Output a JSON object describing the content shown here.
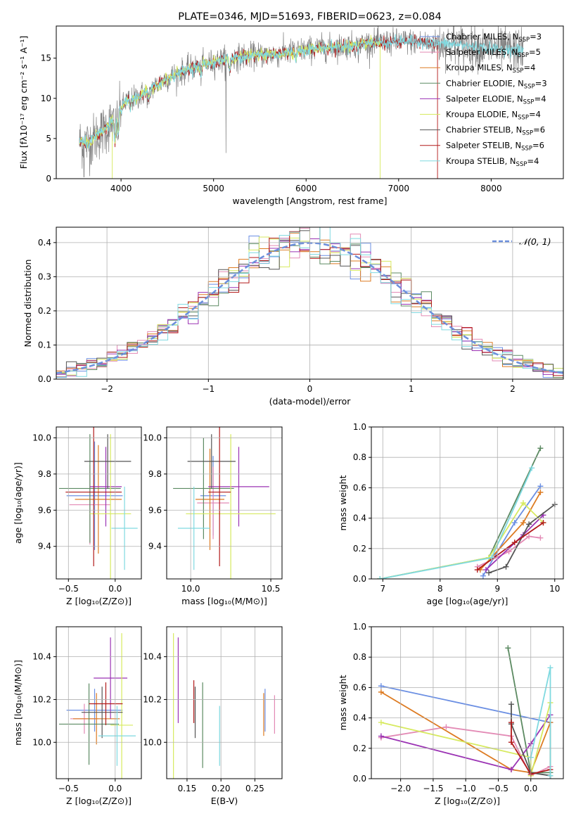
{
  "colors": {
    "chabrier_miles": "#6b8fe3",
    "salpeter_miles": "#e38ab5",
    "kroupa_miles": "#dd7b22",
    "chabrier_elodie": "#5c8a62",
    "salpeter_elodie": "#9b33b4",
    "kroupa_elodie": "#d7ea5f",
    "chabrier_stelib": "#555555",
    "salpeter_stelib": "#b21a1a",
    "kroupa_stelib": "#7fd9e0",
    "data": "#808080",
    "normal": "#6c8fdc",
    "grid": "#b0b0b0"
  },
  "chart_data": [
    {
      "id": "spectrum",
      "type": "line",
      "title": "PLATE=0346, MJD=51693, FIBERID=0623, z=0.084",
      "xlabel": "wavelength [Angstrom, rest frame]",
      "ylabel": "Flux [fλ10⁻¹⁷ erg cm⁻² s⁻¹ A⁻¹]",
      "xlim": [
        3300,
        8780
      ],
      "ylim": [
        0,
        19
      ],
      "xticks": [
        4000,
        5000,
        6000,
        7000,
        8000
      ],
      "yticks": [
        0,
        5,
        10,
        15
      ],
      "grid": false,
      "legend_position": "top-right",
      "legend": [
        {
          "label": "Chabrier MILES, N",
          "sub": "SSP",
          "suffix": "=3",
          "color_key": "chabrier_miles"
        },
        {
          "label": "Salpeter MILES, N",
          "sub": "SSP",
          "suffix": "=5",
          "color_key": "salpeter_miles"
        },
        {
          "label": "Kroupa MILES, N",
          "sub": "SSP",
          "suffix": "=4",
          "color_key": "kroupa_miles"
        },
        {
          "label": "Chabrier ELODIE, N",
          "sub": "SSP",
          "suffix": "=3",
          "color_key": "chabrier_elodie"
        },
        {
          "label": "Salpeter ELODIE, N",
          "sub": "SSP",
          "suffix": "=4",
          "color_key": "salpeter_elodie"
        },
        {
          "label": "Kroupa ELODIE, N",
          "sub": "SSP",
          "suffix": "=4",
          "color_key": "kroupa_elodie"
        },
        {
          "label": "Chabrier STELIB, N",
          "sub": "SSP",
          "suffix": "=6",
          "color_key": "chabrier_stelib"
        },
        {
          "label": "Salpeter STELIB, N",
          "sub": "SSP",
          "suffix": "=6",
          "color_key": "salpeter_stelib"
        },
        {
          "label": "Kroupa STELIB, N",
          "sub": "SSP",
          "suffix": "=4",
          "color_key": "kroupa_stelib"
        }
      ],
      "data_x_range": [
        3550,
        8350
      ],
      "models": [
        {
          "color_key": "salpeter_stelib",
          "x_range": [
            3550,
            7420
          ],
          "drop_at": 7420
        },
        {
          "color_key": "kroupa_elodie",
          "x_range": [
            3550,
            6800
          ],
          "drop_at": 6800
        },
        {
          "color_key": "kroupa_stelib",
          "x_range": [
            3550,
            8350
          ],
          "drop_at": null
        }
      ],
      "continuum": [
        [
          3550,
          4.6
        ],
        [
          3650,
          4.4
        ],
        [
          3750,
          5.4
        ],
        [
          3850,
          6.4
        ],
        [
          3950,
          7.6
        ],
        [
          4050,
          9.6
        ],
        [
          4150,
          10.0
        ],
        [
          4300,
          11.0
        ],
        [
          4500,
          12.5
        ],
        [
          4700,
          13.5
        ],
        [
          4900,
          14.2
        ],
        [
          5100,
          14.8
        ],
        [
          5300,
          15.2
        ],
        [
          5500,
          15.4
        ],
        [
          5700,
          15.5
        ],
        [
          5900,
          15.9
        ],
        [
          6100,
          16.2
        ],
        [
          6300,
          16.4
        ],
        [
          6500,
          16.6
        ],
        [
          6700,
          16.9
        ],
        [
          6900,
          17.0
        ],
        [
          7100,
          17.1
        ],
        [
          7300,
          16.9
        ],
        [
          7500,
          16.8
        ],
        [
          7700,
          16.6
        ],
        [
          7900,
          16.3
        ],
        [
          8100,
          16.1
        ],
        [
          8350,
          16.0
        ]
      ]
    },
    {
      "id": "residuals",
      "type": "histogram",
      "xlabel": "(data-model)/error",
      "ylabel": "Normed distribution",
      "xlim": [
        -2.5,
        2.5
      ],
      "ylim": [
        0,
        0.445
      ],
      "xticks": [
        -2,
        -1,
        0,
        1,
        2
      ],
      "yticks": [
        0.0,
        0.1,
        0.2,
        0.3,
        0.4
      ],
      "grid": true,
      "legend_position": "top-right",
      "legend": [
        {
          "label": "𝒩(0, 1)",
          "style": "dashed",
          "color_key": "normal"
        }
      ],
      "bin_width": 0.1,
      "note": "nine step histograms, one per model, approximately normal"
    },
    {
      "id": "age_vs_Z",
      "type": "errorbar",
      "xlabel": "Z [log₁₀(Z/Z⊙)]",
      "ylabel": "age  [log₁₀(age/yr)]",
      "xlim": [
        -0.63,
        0.28
      ],
      "ylim": [
        9.22,
        10.06
      ],
      "xticks": [
        -0.5,
        0.0
      ],
      "yticks": [
        9.4,
        9.6,
        9.8,
        10.0
      ],
      "grid": true,
      "points": [
        {
          "x": -0.22,
          "y": 9.68,
          "xerr": 0.3,
          "yerr": 0.3,
          "color_key": "chabrier_miles"
        },
        {
          "x": -0.27,
          "y": 9.63,
          "xerr": 0.22,
          "yerr": 0.22,
          "color_key": "salpeter_miles"
        },
        {
          "x": -0.18,
          "y": 9.66,
          "xerr": 0.25,
          "yerr": 0.3,
          "color_key": "kroupa_miles"
        },
        {
          "x": -0.27,
          "y": 9.72,
          "xerr": 0.33,
          "yerr": 0.3,
          "color_key": "chabrier_elodie"
        },
        {
          "x": -0.1,
          "y": 9.73,
          "xerr": 0.17,
          "yerr": 0.22,
          "color_key": "salpeter_elodie"
        },
        {
          "x": -0.05,
          "y": 9.58,
          "xerr": 0.22,
          "yerr": 0.44,
          "color_key": "kroupa_elodie"
        },
        {
          "x": -0.08,
          "y": 9.87,
          "xerr": 0.25,
          "yerr": 0.15,
          "color_key": "chabrier_stelib"
        },
        {
          "x": -0.23,
          "y": 9.7,
          "xerr": 0.3,
          "yerr": 0.41,
          "color_key": "salpeter_stelib"
        },
        {
          "x": 0.1,
          "y": 9.5,
          "xerr": 0.14,
          "yerr": 0.23,
          "color_key": "kroupa_stelib"
        }
      ]
    },
    {
      "id": "age_vs_mass",
      "type": "errorbar",
      "xlabel": "mass [log₁₀(M/M⊙)]",
      "ylabel": "",
      "xlim": [
        9.85,
        10.57
      ],
      "ylim": [
        9.22,
        10.06
      ],
      "xticks": [
        10.0,
        10.5
      ],
      "yticks": [
        9.4,
        9.6,
        9.8,
        10.0
      ],
      "grid": true,
      "points": [
        {
          "x": 10.14,
          "y": 9.68,
          "xerr": 0.08,
          "yerr": 0.22,
          "color_key": "chabrier_miles"
        },
        {
          "x": 10.14,
          "y": 9.64,
          "xerr": 0.1,
          "yerr": 0.2,
          "color_key": "salpeter_miles"
        },
        {
          "x": 10.12,
          "y": 9.66,
          "xerr": 0.09,
          "yerr": 0.28,
          "color_key": "kroupa_miles"
        },
        {
          "x": 10.08,
          "y": 9.72,
          "xerr": 0.19,
          "yerr": 0.28,
          "color_key": "chabrier_elodie"
        },
        {
          "x": 10.3,
          "y": 9.73,
          "xerr": 0.19,
          "yerr": 0.22,
          "color_key": "salpeter_elodie"
        },
        {
          "x": 10.25,
          "y": 9.58,
          "xerr": 0.28,
          "yerr": 0.44,
          "color_key": "kroupa_elodie"
        },
        {
          "x": 10.13,
          "y": 9.87,
          "xerr": 0.15,
          "yerr": 0.15,
          "color_key": "chabrier_stelib"
        },
        {
          "x": 10.18,
          "y": 9.7,
          "xerr": 0.07,
          "yerr": 0.41,
          "color_key": "salpeter_stelib"
        },
        {
          "x": 10.02,
          "y": 9.5,
          "xerr": 0.1,
          "yerr": 0.23,
          "color_key": "kroupa_stelib"
        }
      ]
    },
    {
      "id": "mass_weight_vs_age",
      "type": "line",
      "xlabel": "age  [log₁₀(age/yr)]",
      "ylabel": "mass weight",
      "xlim": [
        6.8,
        10.15
      ],
      "ylim": [
        0,
        1.0
      ],
      "xticks": [
        7,
        8,
        9,
        10
      ],
      "yticks": [
        0.0,
        0.2,
        0.4,
        0.6,
        0.8,
        1.0
      ],
      "grid": true,
      "series": [
        {
          "color_key": "chabrier_miles",
          "x": [
            8.75,
            9.3,
            9.75
          ],
          "y": [
            0.02,
            0.37,
            0.61
          ]
        },
        {
          "color_key": "salpeter_miles",
          "x": [
            8.65,
            9.2,
            9.55,
            9.75
          ],
          "y": [
            0.08,
            0.18,
            0.28,
            0.27
          ]
        },
        {
          "color_key": "kroupa_miles",
          "x": [
            8.7,
            9.45,
            9.75
          ],
          "y": [
            0.06,
            0.37,
            0.57
          ]
        },
        {
          "color_key": "chabrier_elodie",
          "x": [
            6.95,
            8.85,
            9.75
          ],
          "y": [
            0.0,
            0.14,
            0.86
          ]
        },
        {
          "color_key": "salpeter_elodie",
          "x": [
            8.8,
            9.45,
            9.8
          ],
          "y": [
            0.06,
            0.29,
            0.42
          ]
        },
        {
          "color_key": "kroupa_elodie",
          "x": [
            6.95,
            8.85,
            9.45,
            9.8
          ],
          "y": [
            0.0,
            0.14,
            0.5,
            0.37
          ]
        },
        {
          "color_key": "chabrier_stelib",
          "x": [
            8.85,
            9.15,
            9.55,
            10.0
          ],
          "y": [
            0.04,
            0.08,
            0.36,
            0.49
          ]
        },
        {
          "color_key": "salpeter_stelib",
          "x": [
            8.65,
            9.3,
            9.8
          ],
          "y": [
            0.06,
            0.24,
            0.37
          ]
        },
        {
          "color_key": "kroupa_stelib",
          "x": [
            6.95,
            8.9,
            9.6
          ],
          "y": [
            0.0,
            0.14,
            0.73
          ]
        }
      ]
    },
    {
      "id": "mass_vs_Z",
      "type": "errorbar",
      "xlabel": "Z [log₁₀(Z/Z⊙)]",
      "ylabel": "mass [log₁₀(M/M⊙)]",
      "xlim": [
        -0.63,
        0.28
      ],
      "ylim": [
        9.83,
        10.54
      ],
      "xticks": [
        -0.5,
        0.0
      ],
      "yticks": [
        10.0,
        10.2,
        10.4
      ],
      "grid": true,
      "points": [
        {
          "x": -0.22,
          "y": 10.15,
          "xerr": 0.3,
          "yerr": 0.1,
          "color_key": "chabrier_miles"
        },
        {
          "x": -0.33,
          "y": 10.11,
          "xerr": 0.15,
          "yerr": 0.07,
          "color_key": "salpeter_miles"
        },
        {
          "x": -0.2,
          "y": 10.11,
          "xerr": 0.25,
          "yerr": 0.12,
          "color_key": "kroupa_miles"
        },
        {
          "x": -0.28,
          "y": 10.085,
          "xerr": 0.32,
          "yerr": 0.19,
          "color_key": "chabrier_elodie"
        },
        {
          "x": -0.05,
          "y": 10.3,
          "xerr": 0.18,
          "yerr": 0.19,
          "color_key": "salpeter_elodie"
        },
        {
          "x": 0.07,
          "y": 10.08,
          "xerr": 0.12,
          "yerr": 0.43,
          "color_key": "kroupa_elodie"
        },
        {
          "x": -0.14,
          "y": 10.14,
          "xerr": 0.22,
          "yerr": 0.12,
          "color_key": "chabrier_stelib"
        },
        {
          "x": -0.1,
          "y": 10.18,
          "xerr": 0.18,
          "yerr": 0.1,
          "color_key": "salpeter_stelib"
        },
        {
          "x": 0.02,
          "y": 10.03,
          "xerr": 0.2,
          "yerr": 0.14,
          "color_key": "kroupa_stelib"
        }
      ]
    },
    {
      "id": "mass_vs_ebv",
      "type": "errorbar",
      "xlabel": "E(B-V)",
      "ylabel": "",
      "xlim": [
        0.12,
        0.29
      ],
      "ylim": [
        9.83,
        10.54
      ],
      "xticks": [
        0.15,
        0.2,
        0.25
      ],
      "yticks": [
        10.0,
        10.2,
        10.4
      ],
      "grid": true,
      "points": [
        {
          "x": 0.265,
          "y": 10.15,
          "xerr": 0,
          "yerr": 0.1,
          "color_key": "chabrier_miles"
        },
        {
          "x": 0.279,
          "y": 10.13,
          "xerr": 0,
          "yerr": 0.09,
          "color_key": "salpeter_miles"
        },
        {
          "x": 0.263,
          "y": 10.13,
          "xerr": 0,
          "yerr": 0.1,
          "color_key": "kroupa_miles"
        },
        {
          "x": 0.173,
          "y": 10.08,
          "xerr": 0,
          "yerr": 0.2,
          "color_key": "chabrier_elodie"
        },
        {
          "x": 0.137,
          "y": 10.29,
          "xerr": 0,
          "yerr": 0.2,
          "color_key": "salpeter_elodie"
        },
        {
          "x": 0.13,
          "y": 10.08,
          "xerr": 0,
          "yerr": 0.43,
          "color_key": "kroupa_elodie"
        },
        {
          "x": 0.162,
          "y": 10.14,
          "xerr": 0,
          "yerr": 0.12,
          "color_key": "chabrier_stelib"
        },
        {
          "x": 0.16,
          "y": 10.19,
          "xerr": 0,
          "yerr": 0.1,
          "color_key": "salpeter_stelib"
        },
        {
          "x": 0.198,
          "y": 10.03,
          "xerr": 0,
          "yerr": 0.14,
          "color_key": "kroupa_stelib"
        }
      ]
    },
    {
      "id": "mass_weight_vs_Z",
      "type": "line",
      "xlabel": "Z [log₁₀(Z/Z⊙)]",
      "ylabel": "mass weight",
      "xlim": [
        -2.45,
        0.5
      ],
      "ylim": [
        0,
        1.0
      ],
      "xticks": [
        -2.0,
        -1.5,
        -1.0,
        -0.5,
        0.0
      ],
      "yticks": [
        0.0,
        0.2,
        0.4,
        0.6,
        0.8,
        1.0
      ],
      "grid": true,
      "series": [
        {
          "color_key": "chabrier_miles",
          "x": [
            -2.3,
            0.3,
            0.3
          ],
          "y": [
            0.61,
            0.37,
            0.02
          ]
        },
        {
          "color_key": "salpeter_miles",
          "x": [
            -2.3,
            -1.3,
            -0.3,
            0.0,
            0.3
          ],
          "y": [
            0.27,
            0.34,
            0.28,
            0.02,
            0.08
          ]
        },
        {
          "color_key": "kroupa_miles",
          "x": [
            -2.3,
            -0.3,
            0.0,
            0.3,
            0.3
          ],
          "y": [
            0.57,
            0.06,
            0.04,
            0.37,
            0.02
          ]
        },
        {
          "color_key": "chabrier_elodie",
          "x": [
            -0.35,
            0.0,
            0.3
          ],
          "y": [
            0.86,
            0.04,
            0.04
          ]
        },
        {
          "color_key": "salpeter_elodie",
          "x": [
            -2.3,
            -0.3,
            0.0,
            0.3
          ],
          "y": [
            0.28,
            0.06,
            0.23,
            0.42
          ]
        },
        {
          "color_key": "kroupa_elodie",
          "x": [
            -2.3,
            0.0,
            0.0,
            0.3
          ],
          "y": [
            0.37,
            0.14,
            0.02,
            0.5
          ]
        },
        {
          "color_key": "chabrier_stelib",
          "x": [
            -0.3,
            -0.3,
            0.0,
            0.3
          ],
          "y": [
            0.49,
            0.36,
            0.04,
            0.02
          ]
        },
        {
          "color_key": "salpeter_stelib",
          "x": [
            -0.3,
            -0.3,
            0.0,
            0.3
          ],
          "y": [
            0.37,
            0.24,
            0.03,
            0.06
          ]
        },
        {
          "color_key": "kroupa_stelib",
          "x": [
            0.0,
            0.3,
            0.3
          ],
          "y": [
            0.14,
            0.73,
            0.02
          ]
        }
      ]
    }
  ]
}
